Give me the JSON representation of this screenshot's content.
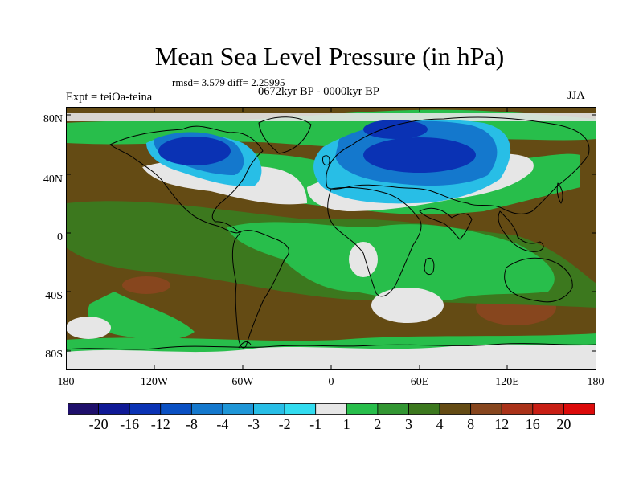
{
  "title": "Mean Sea Level Pressure (in hPa)",
  "stats": "rmsd= 3.579 diff= 2.25995",
  "period": "0672kyr BP - 0000kyr BP",
  "experiment": "Expt = teiOa-teina",
  "season": "JJA",
  "lat_labels": [
    "80N",
    "40N",
    "0",
    "40S",
    "80S"
  ],
  "lon_labels": [
    "180",
    "120W",
    "60W",
    "0",
    "60E",
    "120E",
    "180"
  ],
  "colorbar": {
    "labels": [
      "-20",
      "-16",
      "-12",
      "-8",
      "-4",
      "-3",
      "-2",
      "-1",
      "1",
      "2",
      "3",
      "4",
      "8",
      "12",
      "16",
      "20"
    ],
    "colors": [
      "#1e0f6b",
      "#0f1996",
      "#0a32b4",
      "#0a50c3",
      "#1478cd",
      "#1e96d7",
      "#28bee6",
      "#32dcf0",
      "#e6e6e6",
      "#28be4b",
      "#329632",
      "#3c781e",
      "#644b14",
      "#87461e",
      "#aa3219",
      "#c81e14",
      "#dc0a0a"
    ]
  },
  "map_colors": {
    "ocean_base": "#644b14",
    "strong_positive": "#87461e",
    "near_zero": "#e6e6e6",
    "weak_positive": "#28be4b",
    "moderate_positive": "#3c781e",
    "weak_negative": "#28bee6",
    "moderate_negative": "#1478cd",
    "strong_negative": "#0a32b4"
  }
}
